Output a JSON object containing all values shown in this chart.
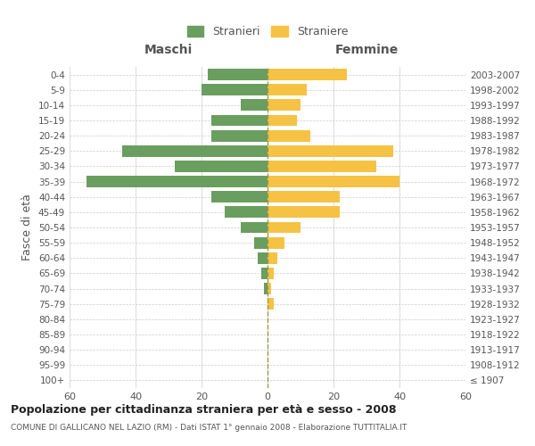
{
  "age_groups": [
    "100+",
    "95-99",
    "90-94",
    "85-89",
    "80-84",
    "75-79",
    "70-74",
    "65-69",
    "60-64",
    "55-59",
    "50-54",
    "45-49",
    "40-44",
    "35-39",
    "30-34",
    "25-29",
    "20-24",
    "15-19",
    "10-14",
    "5-9",
    "0-4"
  ],
  "birth_years": [
    "≤ 1907",
    "1908-1912",
    "1913-1917",
    "1918-1922",
    "1923-1927",
    "1928-1932",
    "1933-1937",
    "1938-1942",
    "1943-1947",
    "1948-1952",
    "1953-1957",
    "1958-1962",
    "1963-1967",
    "1968-1972",
    "1973-1977",
    "1978-1982",
    "1983-1987",
    "1988-1992",
    "1993-1997",
    "1998-2002",
    "2003-2007"
  ],
  "males": [
    0,
    0,
    0,
    0,
    0,
    0,
    1,
    2,
    3,
    4,
    8,
    13,
    17,
    55,
    28,
    44,
    17,
    17,
    8,
    20,
    18
  ],
  "females": [
    0,
    0,
    0,
    0,
    0,
    2,
    1,
    2,
    3,
    5,
    10,
    22,
    22,
    40,
    33,
    38,
    13,
    9,
    10,
    12,
    24
  ],
  "male_color": "#6a9e5f",
  "female_color": "#f5c244",
  "bar_height": 0.75,
  "xlim": 60,
  "title": "Popolazione per cittadinanza straniera per età e sesso - 2008",
  "subtitle": "COMUNE DI GALLICANO NEL LAZIO (RM) - Dati ISTAT 1° gennaio 2008 - Elaborazione TUTTITALIA.IT",
  "legend_labels": [
    "Stranieri",
    "Straniere"
  ],
  "left_header": "Maschi",
  "right_header": "Femmine",
  "y_label_left": "Fasce di età",
  "bg_color": "#ffffff",
  "grid_color": "#cccccc",
  "axis_color": "#888888",
  "text_color": "#555555",
  "title_color": "#222222"
}
